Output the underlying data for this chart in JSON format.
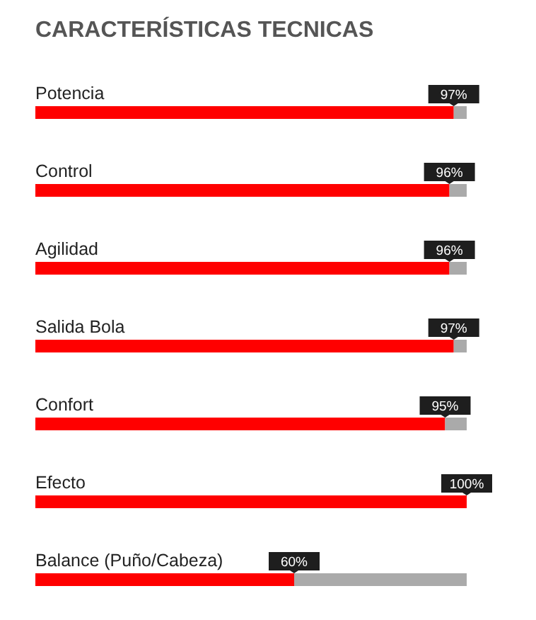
{
  "chart_data": {
    "type": "bar",
    "orientation": "horizontal",
    "title": "CARACTERÍSTICAS TECNICAS",
    "categories": [
      "Potencia",
      "Control",
      "Agilidad",
      "Salida Bola",
      "Confort",
      "Efecto",
      "Balance (Puño/Cabeza)"
    ],
    "values": [
      97,
      96,
      96,
      97,
      95,
      100,
      60
    ],
    "value_labels": [
      "97%",
      "96%",
      "96%",
      "97%",
      "95%",
      "100%",
      "60%"
    ],
    "color": "#ff0000",
    "tick_labels": false
  }
}
